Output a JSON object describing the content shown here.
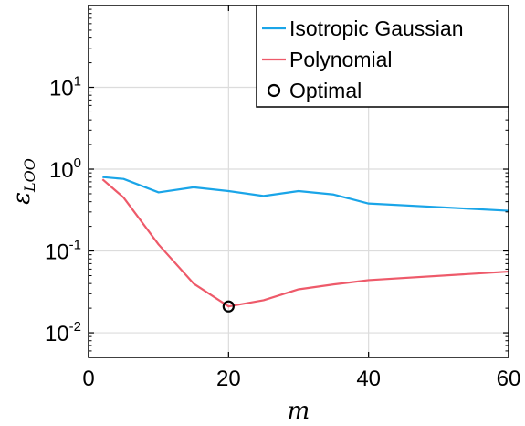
{
  "chart_data": {
    "type": "line",
    "xlabel": "m",
    "ylabel_main": "ε",
    "ylabel_sub": "LOO",
    "xlim": [
      0,
      60
    ],
    "ylim": [
      0.005,
      100
    ],
    "yscale": "log",
    "grid": true,
    "x_ticks": [
      0,
      20,
      40,
      60
    ],
    "y_ticks": [
      {
        "value": 0.01,
        "base": "10",
        "exp": "-2"
      },
      {
        "value": 0.1,
        "base": "10",
        "exp": "-1"
      },
      {
        "value": 1,
        "base": "10",
        "exp": "0"
      },
      {
        "value": 10,
        "base": "10",
        "exp": "1"
      }
    ],
    "legend_position": "top-right",
    "series": [
      {
        "name": "Isotropic Gaussian",
        "color": "#1aa5e8",
        "x": [
          2,
          5,
          10,
          15,
          20,
          25,
          30,
          35,
          40,
          60
        ],
        "y": [
          0.8,
          0.76,
          0.52,
          0.6,
          0.54,
          0.47,
          0.54,
          0.49,
          0.38,
          0.31
        ]
      },
      {
        "name": "Polynomial",
        "color": "#ee5a6a",
        "x": [
          2,
          5,
          10,
          15,
          20,
          25,
          30,
          35,
          40,
          60
        ],
        "y": [
          0.75,
          0.45,
          0.12,
          0.04,
          0.021,
          0.025,
          0.034,
          0.039,
          0.044,
          0.056
        ]
      }
    ],
    "optimal": {
      "name": "Optimal",
      "x": 20,
      "y": 0.021
    }
  }
}
